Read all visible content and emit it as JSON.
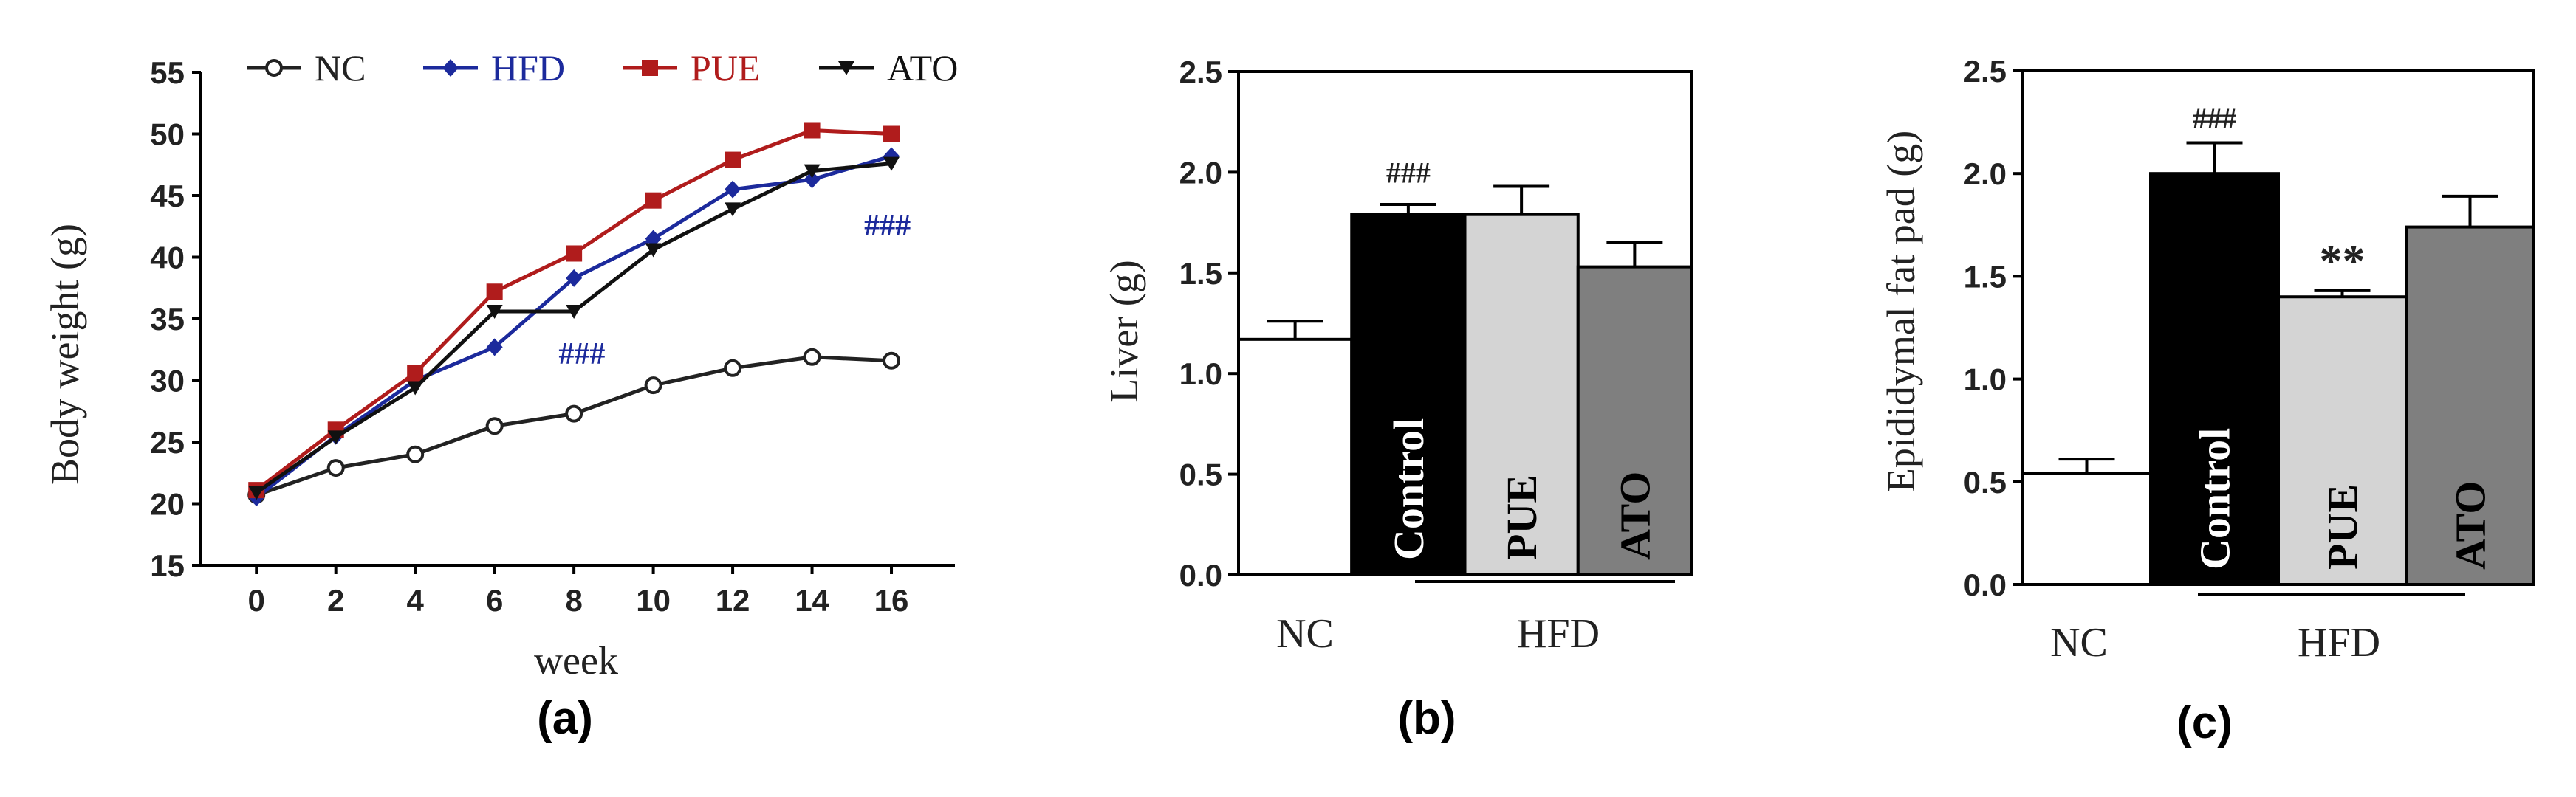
{
  "chart_data": [
    {
      "type": "line",
      "panel_label": "(a)",
      "xlabel": "week",
      "ylabel": "Body weight (g)",
      "x": [
        0,
        2,
        4,
        6,
        8,
        10,
        12,
        14,
        16
      ],
      "xticks": [
        "0",
        "2",
        "4",
        "6",
        "8",
        "10",
        "12",
        "14",
        "16"
      ],
      "ylim": [
        15,
        55
      ],
      "yticks": [
        "15",
        "20",
        "25",
        "30",
        "35",
        "40",
        "45",
        "50",
        "55"
      ],
      "legend": {
        "placement": "top",
        "items": [
          "NC",
          "HFD",
          "PUE",
          "ATO"
        ]
      },
      "series": [
        {
          "name": "NC",
          "color": "#222222",
          "marker": "circle-open",
          "values": [
            20.7,
            22.9,
            24.0,
            26.3,
            27.3,
            29.6,
            31.0,
            31.9,
            31.6
          ]
        },
        {
          "name": "HFD",
          "color": "#1c2a9c",
          "marker": "diamond",
          "values": [
            20.5,
            25.5,
            30.0,
            32.7,
            38.3,
            41.5,
            45.5,
            46.3,
            48.2
          ]
        },
        {
          "name": "PUE",
          "color": "#b01c1c",
          "marker": "square",
          "values": [
            21.1,
            26.0,
            30.6,
            37.2,
            40.3,
            44.6,
            47.9,
            50.3,
            50.0
          ]
        },
        {
          "name": "ATO",
          "color": "#111111",
          "marker": "triangle-down",
          "values": [
            20.9,
            25.4,
            29.4,
            35.6,
            35.6,
            40.6,
            43.9,
            47.0,
            47.6
          ]
        }
      ],
      "annotations": [
        {
          "text": "###",
          "x": 8.2,
          "y": 32.2,
          "color": "#1c2a9c"
        },
        {
          "text": "###",
          "x": 15.9,
          "y": 42.6,
          "color": "#1c2a9c"
        }
      ]
    },
    {
      "type": "bar",
      "panel_label": "(b)",
      "ylabel": "Liver (g)",
      "ylim": [
        0,
        2.5
      ],
      "yticks": [
        "0.0",
        "0.5",
        "1.0",
        "1.5",
        "2.0",
        "2.5"
      ],
      "categories": [
        "NC",
        "Control",
        "PUE",
        "ATO"
      ],
      "values": [
        1.17,
        1.79,
        1.79,
        1.53
      ],
      "errors": [
        0.09,
        0.05,
        0.14,
        0.12
      ],
      "colors": [
        "#ffffff",
        "#000000",
        "#d4d4d4",
        "#7f7f7f"
      ],
      "bar_text_colors": [
        "#000000",
        "#ffffff",
        "#000000",
        "#000000"
      ],
      "group_labels": {
        "nc": "NC",
        "hfd": "HFD"
      },
      "annotations": [
        {
          "text": "###",
          "bar": 1,
          "y": 2.0
        }
      ]
    },
    {
      "type": "bar",
      "panel_label": "(c)",
      "ylabel": "Epididymal fat pad (g)",
      "ylim": [
        0,
        2.5
      ],
      "yticks": [
        "0.0",
        "0.5",
        "1.0",
        "1.5",
        "2.0",
        "2.5"
      ],
      "categories": [
        "NC",
        "Control",
        "PUE",
        "ATO"
      ],
      "values": [
        0.54,
        2.0,
        1.4,
        1.74
      ],
      "errors": [
        0.07,
        0.15,
        0.03,
        0.15
      ],
      "colors": [
        "#ffffff",
        "#000000",
        "#d4d4d4",
        "#7f7f7f"
      ],
      "bar_text_colors": [
        "#000000",
        "#ffffff",
        "#000000",
        "#000000"
      ],
      "group_labels": {
        "nc": "NC",
        "hfd": "HFD"
      },
      "annotations": [
        {
          "text": "###",
          "bar": 1,
          "y": 2.27
        },
        {
          "text": "**",
          "bar": 2,
          "y": 1.55
        }
      ]
    }
  ]
}
